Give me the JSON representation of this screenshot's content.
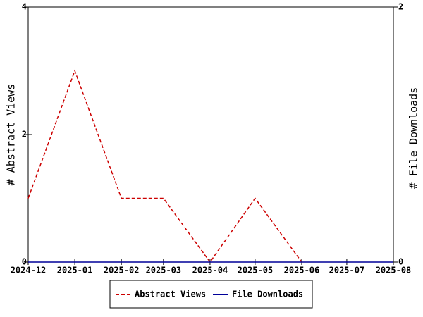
{
  "chart_data": {
    "type": "line",
    "x": [
      "2024-12",
      "2025-01",
      "2025-02",
      "2025-03",
      "2025-04",
      "2025-05",
      "2025-06",
      "2025-07",
      "2025-08"
    ],
    "y_label": "# Abstract Views",
    "y2_label": "# File Downloads",
    "ylim": [
      0,
      4
    ],
    "yticks": [
      0,
      2,
      4
    ],
    "y2lim": [
      0,
      2
    ],
    "y2ticks": [
      0,
      2
    ],
    "series": [
      {
        "name": "Abstract Views",
        "color": "#cc0000",
        "dashed": true,
        "values": [
          1,
          3,
          1,
          1,
          0,
          1,
          0,
          null,
          null
        ]
      },
      {
        "name": "File Downloads",
        "color": "#000099",
        "axis": "y2",
        "values": [
          0,
          0,
          0,
          0,
          0,
          0,
          0,
          0,
          0
        ]
      }
    ]
  }
}
